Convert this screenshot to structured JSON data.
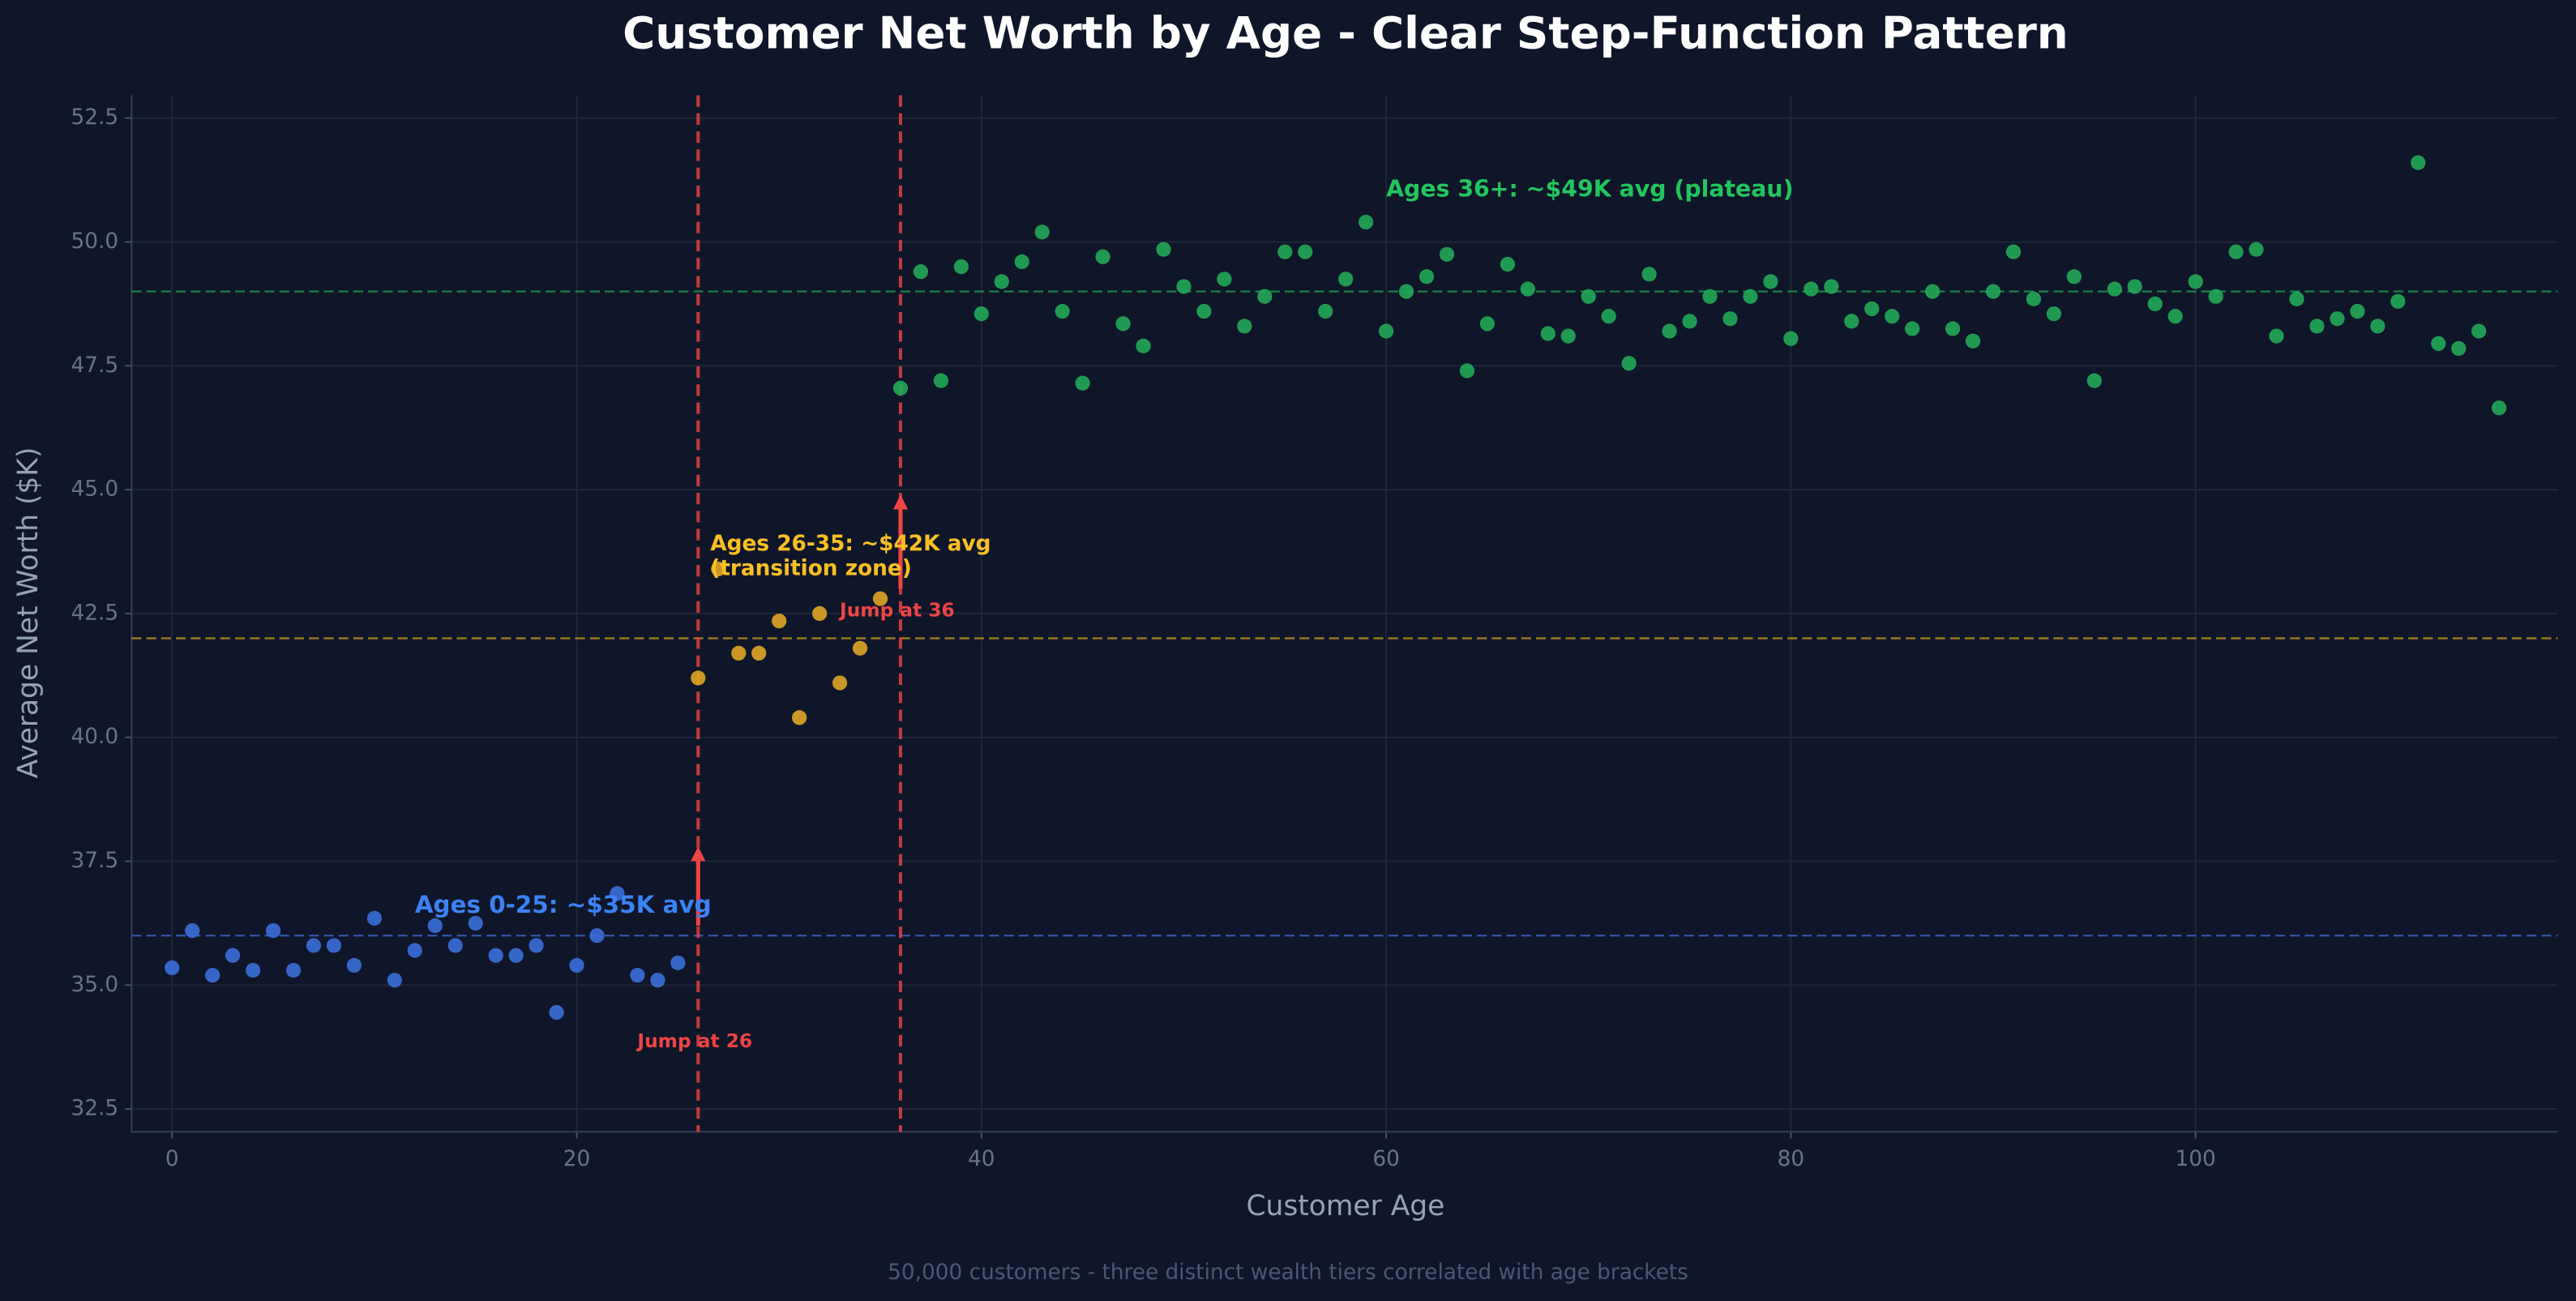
{
  "chart_data": {
    "type": "scatter",
    "title": "Customer Net Worth by Age - Clear Step-Function Pattern",
    "subtitle": "50,000 customers - three distinct wealth tiers correlated with age brackets",
    "xlabel": "Customer Age",
    "ylabel": "Average Net Worth ($K)",
    "xlim": [
      -2,
      117.9
    ],
    "ylim": [
      32.04,
      52.96
    ],
    "xticks": [
      0,
      20,
      40,
      60,
      80,
      100
    ],
    "yticks": [
      32.5,
      {
        "value": 35,
        "label": "35.0"
      },
      37.5,
      {
        "value": 40,
        "label": "40.0"
      },
      42.5,
      {
        "value": 45,
        "label": "45.0"
      },
      47.5,
      {
        "value": 50,
        "label": "50.0"
      },
      52.5
    ],
    "grid": true,
    "series": [
      {
        "color": "#3a6fd8",
        "x": [
          0,
          1,
          2,
          3,
          4,
          5,
          6,
          7,
          8,
          9,
          10,
          11,
          12,
          13,
          14,
          15,
          16,
          17,
          18,
          19,
          20,
          21,
          22,
          23,
          24,
          25
        ],
        "values": [
          35.35,
          36.1,
          35.2,
          35.6,
          35.3,
          36.1,
          35.3,
          35.8,
          35.8,
          35.4,
          36.35,
          35.1,
          35.7,
          36.2,
          35.8,
          36.25,
          35.6,
          35.6,
          35.8,
          34.45,
          35.4,
          36.0,
          36.85,
          35.2,
          35.1,
          35.45
        ]
      },
      {
        "color": "#e0a526",
        "x": [
          26,
          27,
          28,
          29,
          30,
          31,
          32,
          33,
          34,
          35
        ],
        "values": [
          41.2,
          43.4,
          41.7,
          41.7,
          42.35,
          40.4,
          42.5,
          41.1,
          41.8,
          42.8
        ]
      },
      {
        "color": "#22a856",
        "x": [
          36,
          37,
          38,
          39,
          40,
          41,
          42,
          43,
          44,
          45,
          46,
          47,
          48,
          49,
          50,
          51,
          52,
          53,
          54,
          55,
          56,
          57,
          58,
          59,
          60,
          61,
          62,
          63,
          64,
          65,
          66,
          67,
          68,
          69,
          70,
          71,
          72,
          73,
          74,
          75,
          76,
          77,
          78,
          79,
          80,
          81,
          82,
          83,
          84,
          85,
          86,
          87,
          88,
          89,
          90,
          91,
          92,
          93,
          94,
          95,
          96,
          97,
          98,
          99,
          100,
          101,
          102,
          103,
          104,
          105,
          106,
          107,
          108,
          109,
          110,
          111,
          112,
          113,
          114,
          115
        ],
        "values": [
          47.05,
          49.4,
          47.2,
          49.5,
          48.55,
          49.2,
          49.6,
          50.2,
          48.6,
          47.15,
          49.7,
          48.35,
          47.9,
          49.85,
          49.1,
          48.6,
          49.25,
          48.3,
          48.9,
          49.8,
          49.8,
          48.6,
          49.25,
          50.4,
          48.2,
          49.0,
          49.3,
          49.75,
          47.4,
          48.35,
          49.55,
          49.05,
          48.15,
          48.1,
          48.9,
          48.5,
          47.55,
          49.35,
          48.2,
          48.4,
          48.9,
          48.45,
          48.9,
          49.2,
          48.05,
          49.05,
          49.1,
          48.4,
          48.65,
          48.5,
          48.25,
          49.0,
          48.25,
          48.0,
          49.0,
          49.8,
          48.85,
          48.55,
          49.3,
          47.2,
          49.05,
          49.1,
          48.75,
          48.5,
          49.2,
          48.9,
          49.8,
          49.85,
          48.1,
          48.85,
          48.3,
          48.45,
          48.6,
          48.3,
          48.8,
          51.6,
          47.95,
          47.85,
          48.2,
          46.65
        ]
      }
    ],
    "hlines": [
      {
        "value": 36,
        "color": "#3a6fd8"
      },
      {
        "value": 42,
        "color": "#e0a526"
      },
      {
        "value": 49,
        "color": "#22a856"
      }
    ],
    "vlines": [
      {
        "value": 26,
        "color": "#ef4444"
      },
      {
        "value": 36,
        "color": "#ef4444"
      }
    ],
    "annotations": [
      {
        "text": "Ages 36+: ~$49K avg (plateau)",
        "color": "#22c55e"
      },
      {
        "text": "Ages 26-35: ~$42K avg",
        "color": "#fbbf24"
      },
      {
        "text": "(transition zone)",
        "color": "#fbbf24"
      },
      {
        "text": "Jump at 36",
        "color": "#ef4444"
      },
      {
        "text": "Ages 0-25: ~$35K avg",
        "color": "#3b82f6"
      },
      {
        "text": "Jump at 26",
        "color": "#ef4444"
      }
    ]
  }
}
